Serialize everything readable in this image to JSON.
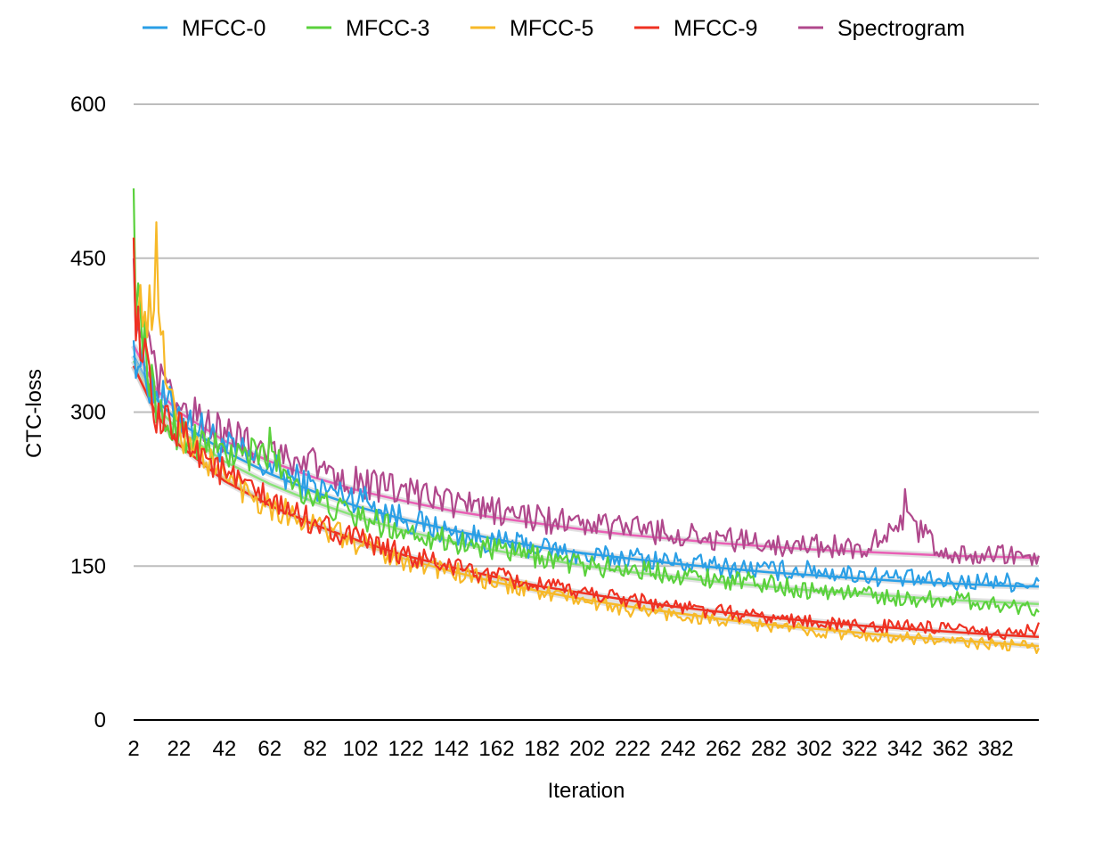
{
  "chart_data": {
    "type": "line",
    "title": "",
    "xlabel": "Iteration",
    "ylabel": "CTC-loss",
    "xlim": [
      2,
      401
    ],
    "ylim": [
      0,
      600
    ],
    "y_ticks": [
      0,
      150,
      300,
      450,
      600
    ],
    "x_ticks": [
      2,
      22,
      42,
      62,
      82,
      102,
      122,
      142,
      162,
      182,
      202,
      222,
      242,
      262,
      282,
      302,
      322,
      342,
      362,
      382
    ],
    "grid": "horizontal",
    "legend_position": "top",
    "series": [
      {
        "name": "MFCC-0",
        "color": "#2a9fe6",
        "trend_color": "#2a9fe6",
        "x": [
          2,
          12,
          22,
          42,
          62,
          82,
          102,
          122,
          142,
          162,
          182,
          202,
          222,
          242,
          262,
          282,
          302,
          322,
          342,
          362,
          382,
          401
        ],
        "values": [
          370,
          320,
          305,
          270,
          250,
          230,
          225,
          195,
          180,
          170,
          168,
          155,
          160,
          155,
          150,
          148,
          150,
          145,
          140,
          135,
          140,
          135
        ],
        "trend": [
          355,
          312,
          290,
          262,
          240,
          222,
          207,
          195,
          185,
          176,
          168,
          162,
          157,
          152,
          148,
          144,
          141,
          138,
          135,
          133,
          131,
          130
        ]
      },
      {
        "name": "MFCC-3",
        "color": "#5ad13c",
        "trend_color": "#8ae37a",
        "x": [
          2,
          12,
          22,
          42,
          62,
          82,
          102,
          122,
          142,
          162,
          182,
          202,
          222,
          242,
          262,
          282,
          302,
          322,
          342,
          362,
          382,
          401
        ],
        "values": [
          518,
          290,
          280,
          265,
          285,
          215,
          195,
          185,
          175,
          165,
          160,
          150,
          150,
          145,
          140,
          135,
          125,
          125,
          115,
          120,
          110,
          105
        ],
        "trend": [
          350,
          305,
          282,
          252,
          230,
          212,
          197,
          184,
          174,
          165,
          157,
          150,
          144,
          139,
          134,
          130,
          126,
          123,
          120,
          117,
          115,
          113
        ]
      },
      {
        "name": "MFCC-5",
        "color": "#f7b928",
        "trend_color": "#f7b928",
        "x": [
          2,
          12,
          22,
          42,
          62,
          82,
          102,
          122,
          142,
          162,
          182,
          202,
          222,
          242,
          262,
          282,
          302,
          322,
          342,
          362,
          382,
          401
        ],
        "values": [
          470,
          485,
          290,
          240,
          210,
          190,
          170,
          155,
          145,
          130,
          125,
          115,
          105,
          100,
          95,
          90,
          85,
          80,
          80,
          75,
          72,
          70
        ],
        "trend": [
          345,
          300,
          270,
          235,
          210,
          190,
          172,
          157,
          145,
          134,
          125,
          117,
          110,
          104,
          98,
          93,
          89,
          85,
          81,
          78,
          75,
          72
        ]
      },
      {
        "name": "MFCC-9",
        "color": "#ef3122",
        "trend_color": "#ef3122",
        "x": [
          2,
          12,
          22,
          42,
          62,
          82,
          102,
          122,
          142,
          162,
          182,
          202,
          222,
          242,
          262,
          282,
          302,
          322,
          342,
          362,
          382,
          401
        ],
        "values": [
          470,
          280,
          300,
          245,
          215,
          195,
          175,
          160,
          150,
          140,
          130,
          125,
          120,
          110,
          105,
          100,
          95,
          90,
          95,
          90,
          85,
          95
        ],
        "trend": [
          345,
          298,
          268,
          233,
          209,
          190,
          174,
          160,
          149,
          139,
          130,
          123,
          116,
          110,
          105,
          100,
          96,
          92,
          89,
          86,
          83,
          81
        ]
      },
      {
        "name": "Spectrogram",
        "color": "#b0488c",
        "trend_color": "#e95fb5",
        "x": [
          2,
          12,
          22,
          42,
          62,
          82,
          102,
          122,
          142,
          162,
          182,
          202,
          222,
          242,
          262,
          282,
          302,
          322,
          342,
          362,
          382,
          401
        ],
        "values": [
          450,
          340,
          305,
          285,
          275,
          260,
          240,
          230,
          220,
          210,
          200,
          195,
          195,
          185,
          180,
          175,
          175,
          170,
          225,
          160,
          160,
          160
        ],
        "trend": [
          365,
          322,
          300,
          272,
          252,
          236,
          223,
          213,
          204,
          197,
          191,
          185,
          180,
          176,
          172,
          169,
          166,
          164,
          162,
          160,
          159,
          158
        ]
      }
    ]
  }
}
